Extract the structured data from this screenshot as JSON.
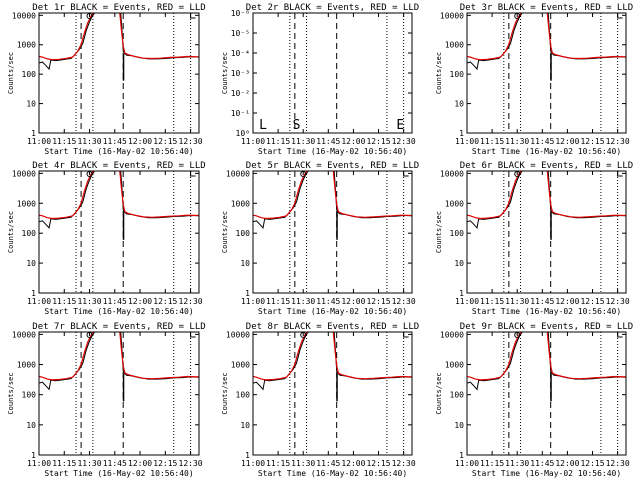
{
  "figure": {
    "x_ticks": [
      "11:00",
      "11:15",
      "11:30",
      "11:45",
      "12:00",
      "12:15",
      "12:30"
    ],
    "xlabel": "Start Time (16-May-02 10:56:40)",
    "ylabel": "Counts/sec",
    "y_ticks_counts": [
      "1",
      "10",
      "100",
      "1000",
      "10000"
    ]
  },
  "chart_data": [
    {
      "type": "line",
      "title": "Det 1r BLACK = Events, RED = LLD",
      "ylog": true,
      "ylim": [
        1,
        12000
      ],
      "xlim_min": [
        0,
        95
      ],
      "event_black": true,
      "series": [
        {
          "name": "Events",
          "color": "#000000"
        },
        {
          "name": "LLD",
          "color": "#e00000"
        }
      ],
      "x_ticks": [
        "11:00",
        "11:15",
        "11:30",
        "11:45",
        "12:00",
        "12:15",
        "12:30"
      ],
      "y_ticks": [
        "1",
        "10",
        "100",
        "1000",
        "10000"
      ],
      "xlabel": "Start Time (16-May-02 10:56:40)",
      "ylabel": "Counts/sec",
      "dotted_lines_min": [
        22,
        32,
        80,
        90
      ],
      "dashed_lines_min": [
        25,
        50
      ],
      "saa_marker_min": 30,
      "mark_min": 90
    },
    {
      "type": "line",
      "title": "Det 2r BLACK = Events, RED = LLD",
      "ylog": true,
      "ylim": [
        1,
        1e-06
      ],
      "xlim_min": [
        0,
        95
      ],
      "empty": true,
      "x_ticks": [
        "11:00",
        "11:15",
        "11:30",
        "11:45",
        "12:00",
        "12:15",
        "12:30"
      ],
      "y_ticks": [
        "10⁰",
        "10⁻¹",
        "10⁻²",
        "10⁻³",
        "10⁻⁴",
        "10⁻⁵",
        "10⁻⁶"
      ],
      "xlabel": "Start Time (16-May-02 10:56:40)",
      "ylabel": "Counts/sec",
      "dotted_lines_min": [
        22,
        32,
        80,
        90
      ],
      "dashed_lines_min": [
        25,
        50
      ],
      "glyphs": [
        {
          "x_min": 6,
          "text": "L"
        },
        {
          "x_min": 26,
          "text": "S"
        },
        {
          "x_min": 88,
          "text": "E"
        }
      ]
    },
    {
      "type": "line",
      "title": "Det 3r BLACK = Events, RED = LLD",
      "ylog": true,
      "ylim": [
        1,
        12000
      ],
      "xlim_min": [
        0,
        95
      ],
      "event_black": true,
      "series": [
        {
          "name": "Events",
          "color": "#000000"
        },
        {
          "name": "LLD",
          "color": "#e00000"
        }
      ],
      "x_ticks": [
        "11:00",
        "11:15",
        "11:30",
        "11:45",
        "12:00",
        "12:15",
        "12:30"
      ],
      "y_ticks": [
        "1",
        "10",
        "100",
        "1000",
        "10000"
      ],
      "xlabel": "Start Time (16-May-02 10:56:40)",
      "ylabel": "Counts/sec",
      "dotted_lines_min": [
        22,
        32,
        80,
        90
      ],
      "dashed_lines_min": [
        25,
        50
      ],
      "saa_marker_min": 30,
      "mark_min": 90
    },
    {
      "type": "line",
      "title": "Det 4r BLACK = Events, RED = LLD",
      "ylog": true,
      "ylim": [
        1,
        12000
      ],
      "xlim_min": [
        0,
        95
      ],
      "event_black": true,
      "series": [
        {
          "name": "Events",
          "color": "#000000"
        },
        {
          "name": "LLD",
          "color": "#e00000"
        }
      ],
      "x_ticks": [
        "11:00",
        "11:15",
        "11:30",
        "11:45",
        "12:00",
        "12:15",
        "12:30"
      ],
      "y_ticks": [
        "1",
        "10",
        "100",
        "1000",
        "10000"
      ],
      "xlabel": "Start Time (16-May-02 10:56:40)",
      "ylabel": "Counts/sec",
      "dotted_lines_min": [
        22,
        32,
        80,
        90
      ],
      "dashed_lines_min": [
        25,
        50
      ],
      "saa_marker_min": 30,
      "mark_min": 90
    },
    {
      "type": "line",
      "title": "Det 5r BLACK = Events, RED = LLD",
      "ylog": true,
      "ylim": [
        1,
        12000
      ],
      "xlim_min": [
        0,
        95
      ],
      "event_black": true,
      "series": [
        {
          "name": "Events",
          "color": "#000000"
        },
        {
          "name": "LLD",
          "color": "#e00000"
        }
      ],
      "x_ticks": [
        "11:00",
        "11:15",
        "11:30",
        "11:45",
        "12:00",
        "12:15",
        "12:30"
      ],
      "y_ticks": [
        "1",
        "10",
        "100",
        "1000",
        "10000"
      ],
      "xlabel": "Start Time (16-May-02 10:56:40)",
      "ylabel": "Counts/sec",
      "dotted_lines_min": [
        22,
        32,
        80,
        90
      ],
      "dashed_lines_min": [
        25,
        50
      ],
      "saa_marker_min": 30,
      "mark_min": 90
    },
    {
      "type": "line",
      "title": "Det 6r BLACK = Events, RED = LLD",
      "ylog": true,
      "ylim": [
        1,
        12000
      ],
      "xlim_min": [
        0,
        95
      ],
      "event_black": true,
      "series": [
        {
          "name": "Events",
          "color": "#000000"
        },
        {
          "name": "LLD",
          "color": "#e00000"
        }
      ],
      "x_ticks": [
        "11:00",
        "11:15",
        "11:30",
        "11:45",
        "12:00",
        "12:15",
        "12:30"
      ],
      "y_ticks": [
        "1",
        "10",
        "100",
        "1000",
        "10000"
      ],
      "xlabel": "Start Time (16-May-02 10:56:40)",
      "ylabel": "Counts/sec",
      "dotted_lines_min": [
        22,
        32,
        80,
        90
      ],
      "dashed_lines_min": [
        25,
        50
      ],
      "saa_marker_min": 30,
      "mark_min": 90
    },
    {
      "type": "line",
      "title": "Det 7r BLACK = Events, RED = LLD",
      "ylog": true,
      "ylim": [
        1,
        12000
      ],
      "xlim_min": [
        0,
        95
      ],
      "event_black": true,
      "series": [
        {
          "name": "Events",
          "color": "#000000"
        },
        {
          "name": "LLD",
          "color": "#e00000"
        }
      ],
      "x_ticks": [
        "11:00",
        "11:15",
        "11:30",
        "11:45",
        "12:00",
        "12:15",
        "12:30"
      ],
      "y_ticks": [
        "1",
        "10",
        "100",
        "1000",
        "10000"
      ],
      "xlabel": "Start Time (16-May-02 10:56:40)",
      "ylabel": "Counts/sec",
      "dotted_lines_min": [
        22,
        32,
        80,
        90
      ],
      "dashed_lines_min": [
        25,
        50
      ],
      "saa_marker_min": 30,
      "mark_min": 90
    },
    {
      "type": "line",
      "title": "Det 8r BLACK = Events, RED = LLD",
      "ylog": true,
      "ylim": [
        1,
        12000
      ],
      "xlim_min": [
        0,
        95
      ],
      "event_black": true,
      "series": [
        {
          "name": "Events",
          "color": "#000000"
        },
        {
          "name": "LLD",
          "color": "#e00000"
        }
      ],
      "x_ticks": [
        "11:00",
        "11:15",
        "11:30",
        "11:45",
        "12:00",
        "12:15",
        "12:30"
      ],
      "y_ticks": [
        "1",
        "10",
        "100",
        "1000",
        "10000"
      ],
      "xlabel": "Start Time (16-May-02 10:56:40)",
      "ylabel": "Counts/sec",
      "dotted_lines_min": [
        22,
        32,
        80,
        90
      ],
      "dashed_lines_min": [
        25,
        50
      ],
      "saa_marker_min": 30,
      "mark_min": 90
    },
    {
      "type": "line",
      "title": "Det 9r BLACK = Events, RED = LLD",
      "ylog": true,
      "ylim": [
        1,
        12000
      ],
      "xlim_min": [
        0,
        95
      ],
      "event_black": true,
      "series": [
        {
          "name": "Events",
          "color": "#000000"
        },
        {
          "name": "LLD",
          "color": "#e00000"
        }
      ],
      "x_ticks": [
        "11:00",
        "11:15",
        "11:30",
        "11:45",
        "12:00",
        "12:15",
        "12:30"
      ],
      "y_ticks": [
        "1",
        "10",
        "100",
        "1000",
        "10000"
      ],
      "xlabel": "Start Time (16-May-02 10:56:40)",
      "ylabel": "Counts/sec",
      "dotted_lines_min": [
        22,
        32,
        80,
        90
      ],
      "dashed_lines_min": [
        25,
        50
      ],
      "saa_marker_min": 30,
      "mark_min": 90
    }
  ],
  "curve": {
    "event_points_min": [
      [
        0,
        240
      ],
      [
        2,
        260
      ],
      [
        4,
        200
      ],
      [
        6,
        150
      ],
      [
        7,
        300
      ],
      [
        10,
        290
      ],
      [
        14,
        310
      ],
      [
        17,
        330
      ],
      [
        19,
        340
      ],
      [
        21,
        440
      ],
      [
        24,
        700
      ],
      [
        26,
        1100
      ],
      [
        28,
        3000
      ],
      [
        30,
        6000
      ],
      [
        31.5,
        9000
      ],
      [
        33,
        12000
      ]
    ],
    "event_tail_min": [
      [
        48.5,
        12000
      ],
      [
        49.5,
        2000
      ],
      [
        50,
        600
      ],
      [
        50.8,
        500
      ],
      [
        52,
        440
      ],
      [
        55,
        420
      ],
      [
        60,
        360
      ],
      [
        65,
        330
      ],
      [
        70,
        330
      ],
      [
        75,
        340
      ],
      [
        80,
        360
      ],
      [
        85,
        370
      ],
      [
        90,
        390
      ],
      [
        95,
        380
      ]
    ],
    "lld_points_min": [
      [
        0,
        400
      ],
      [
        2,
        380
      ],
      [
        5,
        330
      ],
      [
        8,
        310
      ],
      [
        12,
        320
      ],
      [
        16,
        340
      ],
      [
        20,
        380
      ],
      [
        23,
        600
      ],
      [
        25,
        1000
      ],
      [
        27,
        2600
      ],
      [
        29,
        5600
      ],
      [
        31,
        9500
      ],
      [
        32.5,
        12000
      ]
    ],
    "lld_tail_min": [
      [
        48,
        12000
      ],
      [
        49,
        3000
      ],
      [
        50,
        900
      ],
      [
        51,
        520
      ],
      [
        53,
        460
      ],
      [
        57,
        400
      ],
      [
        62,
        350
      ],
      [
        67,
        340
      ],
      [
        72,
        350
      ],
      [
        78,
        370
      ],
      [
        83,
        380
      ],
      [
        88,
        400
      ],
      [
        95,
        390
      ]
    ],
    "dip_min": 50.2,
    "dip_value": 60
  }
}
